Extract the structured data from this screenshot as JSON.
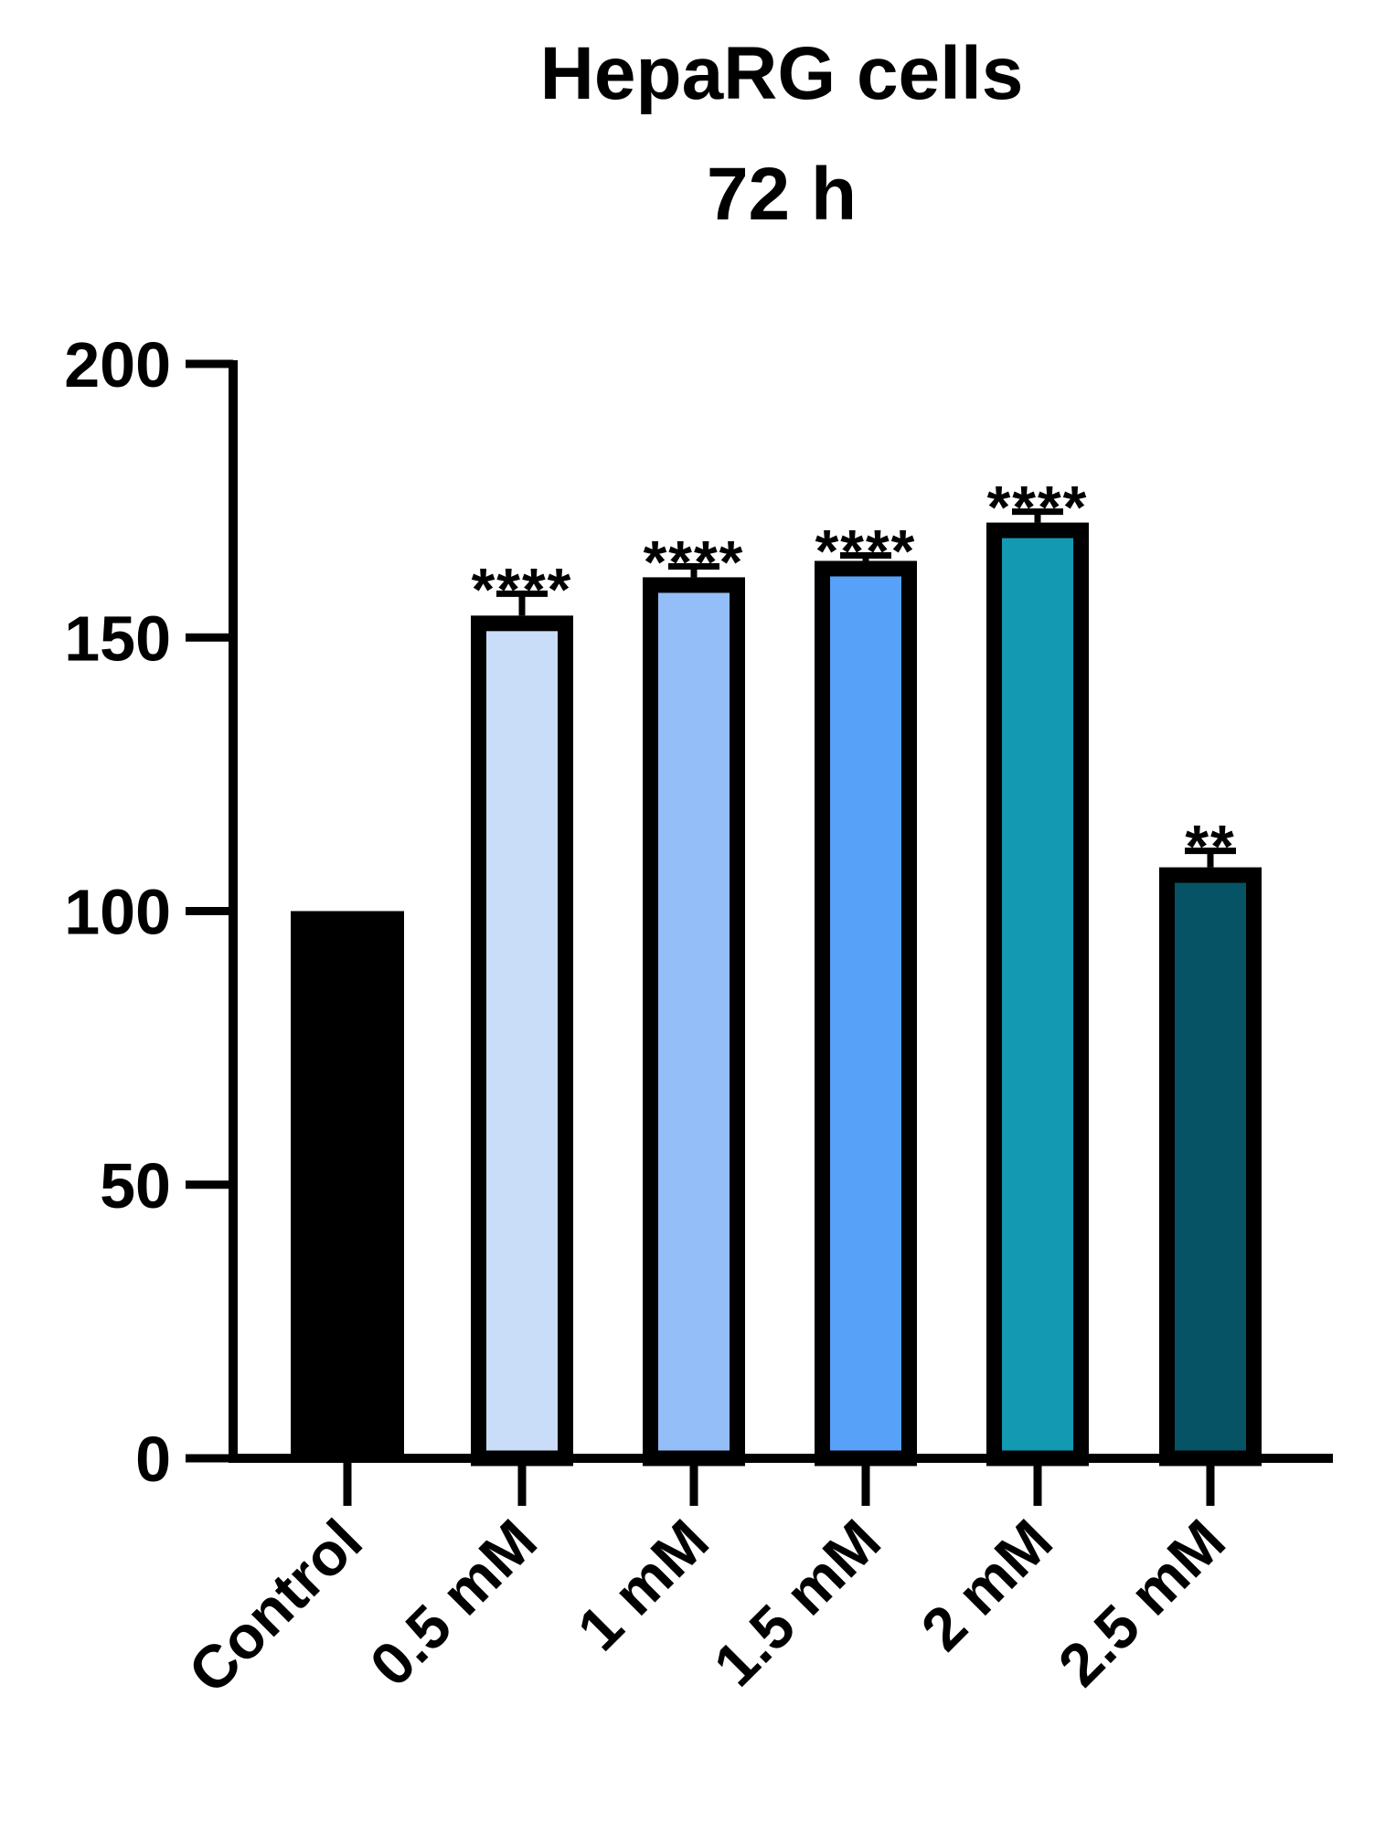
{
  "chart_data": {
    "type": "bar",
    "title_lines": [
      "HepaRG cells",
      "72 h"
    ],
    "categories": [
      "Control",
      "0.5 mM",
      "1 mM",
      "1.5 mM",
      "2 mM",
      "2.5 mM"
    ],
    "values": [
      100,
      154,
      161,
      164,
      171,
      108
    ],
    "error": [
      0,
      4,
      2,
      1,
      2,
      3
    ],
    "significance": [
      "",
      "****",
      "****",
      "****",
      "****",
      "**"
    ],
    "colors": [
      "#000000",
      "#c9ddf8",
      "#93bef7",
      "#57a1f8",
      "#1399b2",
      "#055365"
    ],
    "ylim": [
      0,
      200
    ],
    "yticks": [
      0,
      50,
      100,
      150,
      200
    ],
    "xlabel": "",
    "ylabel": "",
    "grid": false,
    "legend": "none"
  }
}
